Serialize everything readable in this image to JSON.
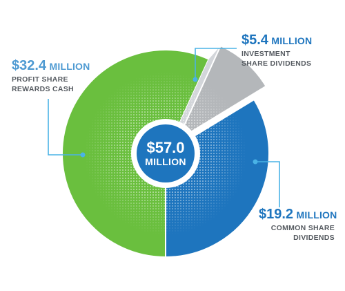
{
  "chart_data": {
    "type": "pie",
    "style": "donut",
    "total": {
      "amount": "$57.0",
      "unit": "MILLION"
    },
    "slices": [
      {
        "key": "green",
        "amount": "$32.4",
        "unit": "MILLION",
        "label_lines": [
          "PROFIT SHARE",
          "REWARDS CASH"
        ],
        "value": 32.4,
        "color": "#6abf3e"
      },
      {
        "key": "gray",
        "amount": "$5.4",
        "unit": "MILLION",
        "label_lines": [
          "INVESTMENT",
          "SHARE DIVIDENDS"
        ],
        "value": 5.4,
        "color": "#b4b7ba"
      },
      {
        "key": "blue",
        "amount": "$19.2",
        "unit": "MILLION",
        "label_lines": [
          "COMMON SHARE",
          "DIVIDENDS"
        ],
        "value": 19.2,
        "color": "#1e75be"
      }
    ],
    "colors": {
      "center": "#1e75be",
      "leader_line": "#4ab3e6",
      "exploded_face": "#d3d6da"
    }
  }
}
